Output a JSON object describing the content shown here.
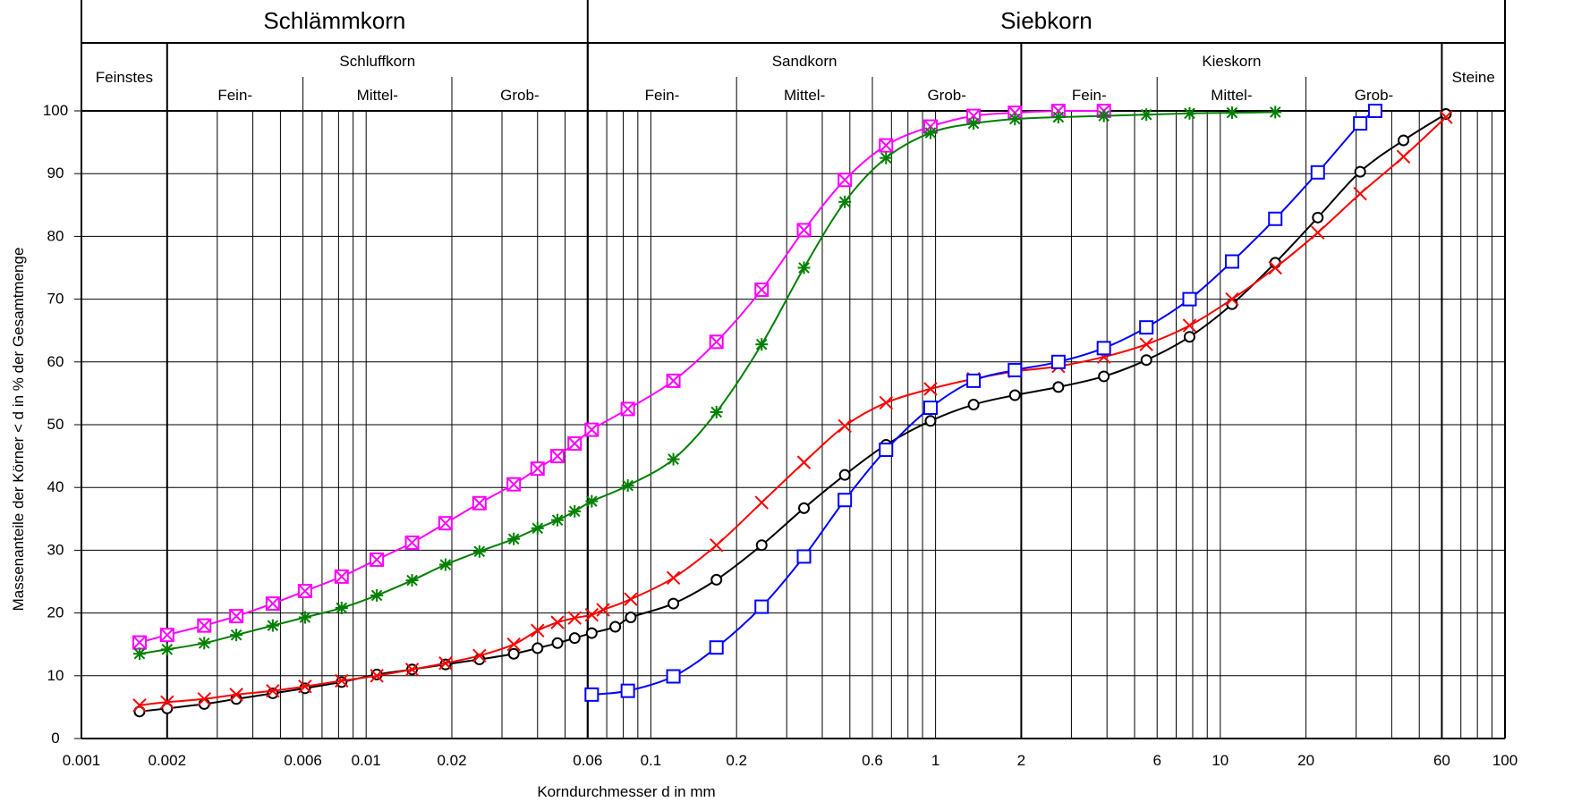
{
  "chart_data": {
    "type": "line",
    "xscale": "log",
    "xlim": [
      0.001,
      100
    ],
    "ylim": [
      0,
      100
    ],
    "xlabel": "Korndurchmesser d in mm",
    "ylabel": "Massenanteile der Körner < d in % der Gesamtmenge",
    "grid": true,
    "x_tick_labels": [
      {
        "v": 0.001,
        "t": "0.001"
      },
      {
        "v": 0.002,
        "t": "0.002"
      },
      {
        "v": 0.006,
        "t": "0.006"
      },
      {
        "v": 0.01,
        "t": "0.01"
      },
      {
        "v": 0.02,
        "t": "0.02"
      },
      {
        "v": 0.06,
        "t": "0.06"
      },
      {
        "v": 0.1,
        "t": "0.1"
      },
      {
        "v": 0.2,
        "t": "0.2"
      },
      {
        "v": 0.6,
        "t": "0.6"
      },
      {
        "v": 1,
        "t": "1"
      },
      {
        "v": 2,
        "t": "2"
      },
      {
        "v": 6,
        "t": "6"
      },
      {
        "v": 10,
        "t": "10"
      },
      {
        "v": 20,
        "t": "20"
      },
      {
        "v": 60,
        "t": "60"
      },
      {
        "v": 100,
        "t": "100"
      }
    ],
    "y_ticks": [
      0,
      10,
      20,
      30,
      40,
      50,
      60,
      70,
      80,
      90,
      100
    ],
    "bands_top": [
      {
        "label": "Schlämmkorn",
        "from": 0.001,
        "to": 0.06
      },
      {
        "label": "Siebkorn",
        "from": 0.06,
        "to": 100
      }
    ],
    "bands_mid": [
      {
        "label": "Feinstes",
        "from": 0.001,
        "to": 0.002
      },
      {
        "label": "Schluffkorn",
        "from": 0.002,
        "to": 0.06
      },
      {
        "label": "Sandkorn",
        "from": 0.06,
        "to": 2
      },
      {
        "label": "Kieskorn",
        "from": 2,
        "to": 60
      },
      {
        "label": "Steine",
        "from": 60,
        "to": 100
      }
    ],
    "bands_sub": [
      {
        "label": "Fein-",
        "from": 0.002,
        "to": 0.006
      },
      {
        "label": "Mittel-",
        "from": 0.006,
        "to": 0.02
      },
      {
        "label": "Grob-",
        "from": 0.02,
        "to": 0.06
      },
      {
        "label": "Fein-",
        "from": 0.06,
        "to": 0.2
      },
      {
        "label": "Mittel-",
        "from": 0.2,
        "to": 0.6
      },
      {
        "label": "Grob-",
        "from": 0.6,
        "to": 2
      },
      {
        "label": "Fein-",
        "from": 2,
        "to": 6
      },
      {
        "label": "Mittel-",
        "from": 6,
        "to": 20
      },
      {
        "label": "Grob-",
        "from": 20,
        "to": 60
      }
    ],
    "series": [
      {
        "color": "#ff00ff",
        "marker": "boxx",
        "x": [
          0.0016,
          0.002,
          0.0027,
          0.0035,
          0.0047,
          0.0061,
          0.0082,
          0.0109,
          0.0145,
          0.019,
          0.025,
          0.033,
          0.04,
          0.047,
          0.054,
          0.062,
          0.083,
          0.12,
          0.17,
          0.245,
          0.345,
          0.48,
          0.67,
          0.96,
          1.36,
          1.9,
          2.7,
          3.9
        ],
        "y": [
          15.3,
          16.5,
          18,
          19.5,
          21.5,
          23.5,
          25.8,
          28.5,
          31.2,
          34.3,
          37.5,
          40.5,
          43,
          45,
          47,
          49.2,
          52.5,
          57,
          63.2,
          71.5,
          81,
          89,
          94.5,
          97.5,
          99.2,
          99.7,
          100,
          100
        ]
      },
      {
        "color": "#008000",
        "marker": "star",
        "x": [
          0.0016,
          0.002,
          0.0027,
          0.0035,
          0.0047,
          0.0061,
          0.0082,
          0.0109,
          0.0145,
          0.019,
          0.025,
          0.033,
          0.04,
          0.047,
          0.054,
          0.062,
          0.083,
          0.12,
          0.17,
          0.245,
          0.345,
          0.48,
          0.67,
          0.96,
          1.36,
          1.9,
          2.7,
          3.9,
          5.5,
          7.8,
          11,
          15.6
        ],
        "y": [
          13.5,
          14.2,
          15.2,
          16.5,
          18,
          19.3,
          20.8,
          22.8,
          25.2,
          27.7,
          29.8,
          31.8,
          33.5,
          34.8,
          36.2,
          37.8,
          40.3,
          44.5,
          52,
          62.8,
          75,
          85.5,
          92.5,
          96.5,
          98,
          98.7,
          99,
          99.2,
          99.4,
          99.6,
          99.7,
          99.8
        ]
      },
      {
        "color": "#000000",
        "marker": "circle",
        "x": [
          0.0016,
          0.002,
          0.0027,
          0.0035,
          0.0047,
          0.0061,
          0.0082,
          0.0109,
          0.0145,
          0.019,
          0.025,
          0.033,
          0.04,
          0.047,
          0.054,
          0.062,
          0.075,
          0.085,
          0.12,
          0.17,
          0.245,
          0.345,
          0.48,
          0.67,
          0.96,
          1.36,
          1.9,
          2.7,
          3.9,
          5.5,
          7.8,
          11,
          15.6,
          22,
          31,
          44,
          62
        ],
        "y": [
          4.3,
          4.8,
          5.5,
          6.3,
          7.2,
          8,
          9,
          10.2,
          11,
          11.8,
          12.6,
          13.5,
          14.4,
          15.2,
          16,
          16.8,
          17.8,
          19.3,
          21.5,
          25.3,
          30.8,
          36.7,
          42,
          46.8,
          50.6,
          53.2,
          54.7,
          56,
          57.7,
          60.3,
          64,
          69.2,
          75.8,
          83,
          90.3,
          95.3,
          99.5
        ]
      },
      {
        "color": "#ff0000",
        "marker": "cross",
        "x": [
          0.0016,
          0.002,
          0.0027,
          0.0035,
          0.0047,
          0.0061,
          0.0082,
          0.0109,
          0.0145,
          0.019,
          0.025,
          0.033,
          0.04,
          0.047,
          0.054,
          0.062,
          0.068,
          0.085,
          0.12,
          0.17,
          0.245,
          0.345,
          0.48,
          0.67,
          0.96,
          1.36,
          1.9,
          2.7,
          3.9,
          5.5,
          7.8,
          11,
          15.6,
          22,
          31,
          44,
          62
        ],
        "y": [
          5.3,
          5.8,
          6.3,
          7,
          7.6,
          8.3,
          9.2,
          10,
          11,
          12,
          13.2,
          15,
          17.2,
          18.5,
          19.2,
          19.7,
          20.5,
          22.2,
          25.6,
          30.8,
          37.6,
          44,
          49.8,
          53.5,
          55.7,
          57.3,
          58.5,
          59.3,
          60.8,
          62.8,
          65.8,
          70,
          75,
          80.6,
          86.8,
          92.7,
          99
        ]
      },
      {
        "color": "#0000ff",
        "marker": "box",
        "x": [
          0.062,
          0.083,
          0.12,
          0.17,
          0.245,
          0.345,
          0.48,
          0.67,
          0.96,
          1.36,
          1.9,
          2.7,
          3.9,
          5.5,
          7.8,
          11,
          15.6,
          22,
          31,
          35
        ],
        "y": [
          7,
          7.6,
          9.9,
          14.5,
          21,
          29,
          38,
          46,
          52.7,
          57,
          58.7,
          60,
          62.2,
          65.5,
          70,
          76,
          82.8,
          90.2,
          98,
          100
        ]
      }
    ]
  }
}
